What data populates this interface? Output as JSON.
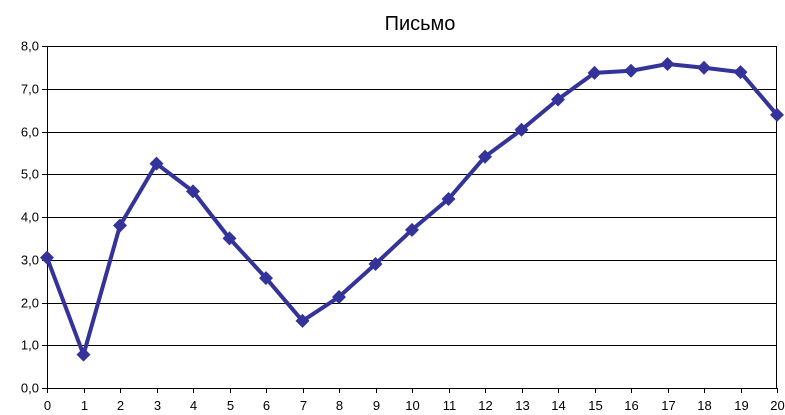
{
  "chart_data": {
    "type": "line",
    "title": "Письмо",
    "xlabel": "",
    "ylabel": "",
    "x": [
      0,
      1,
      2,
      3,
      4,
      5,
      6,
      7,
      8,
      9,
      10,
      11,
      12,
      13,
      14,
      15,
      16,
      17,
      18,
      19,
      20
    ],
    "x_tick_labels": [
      "0",
      "1",
      "2",
      "3",
      "4",
      "5",
      "6",
      "7",
      "8",
      "9",
      "10",
      "11",
      "12",
      "13",
      "14",
      "15",
      "16",
      "17",
      "18",
      "19",
      "20"
    ],
    "y_tick_labels": [
      "0,0",
      "1,0",
      "2,0",
      "3,0",
      "4,0",
      "5,0",
      "6,0",
      "7,0",
      "8,0"
    ],
    "y_ticks": [
      0,
      1,
      2,
      3,
      4,
      5,
      6,
      7,
      8
    ],
    "ylim": [
      0,
      8
    ],
    "xlim": [
      0,
      20
    ],
    "grid": true,
    "legend": "none",
    "series": [
      {
        "color": "#333399",
        "marker": "diamond",
        "values": [
          3.05,
          0.78,
          3.8,
          5.25,
          4.6,
          3.5,
          2.57,
          1.57,
          2.13,
          2.9,
          3.7,
          4.42,
          5.41,
          6.04,
          6.75,
          7.37,
          7.42,
          7.58,
          7.49,
          7.39,
          6.39
        ]
      }
    ]
  }
}
